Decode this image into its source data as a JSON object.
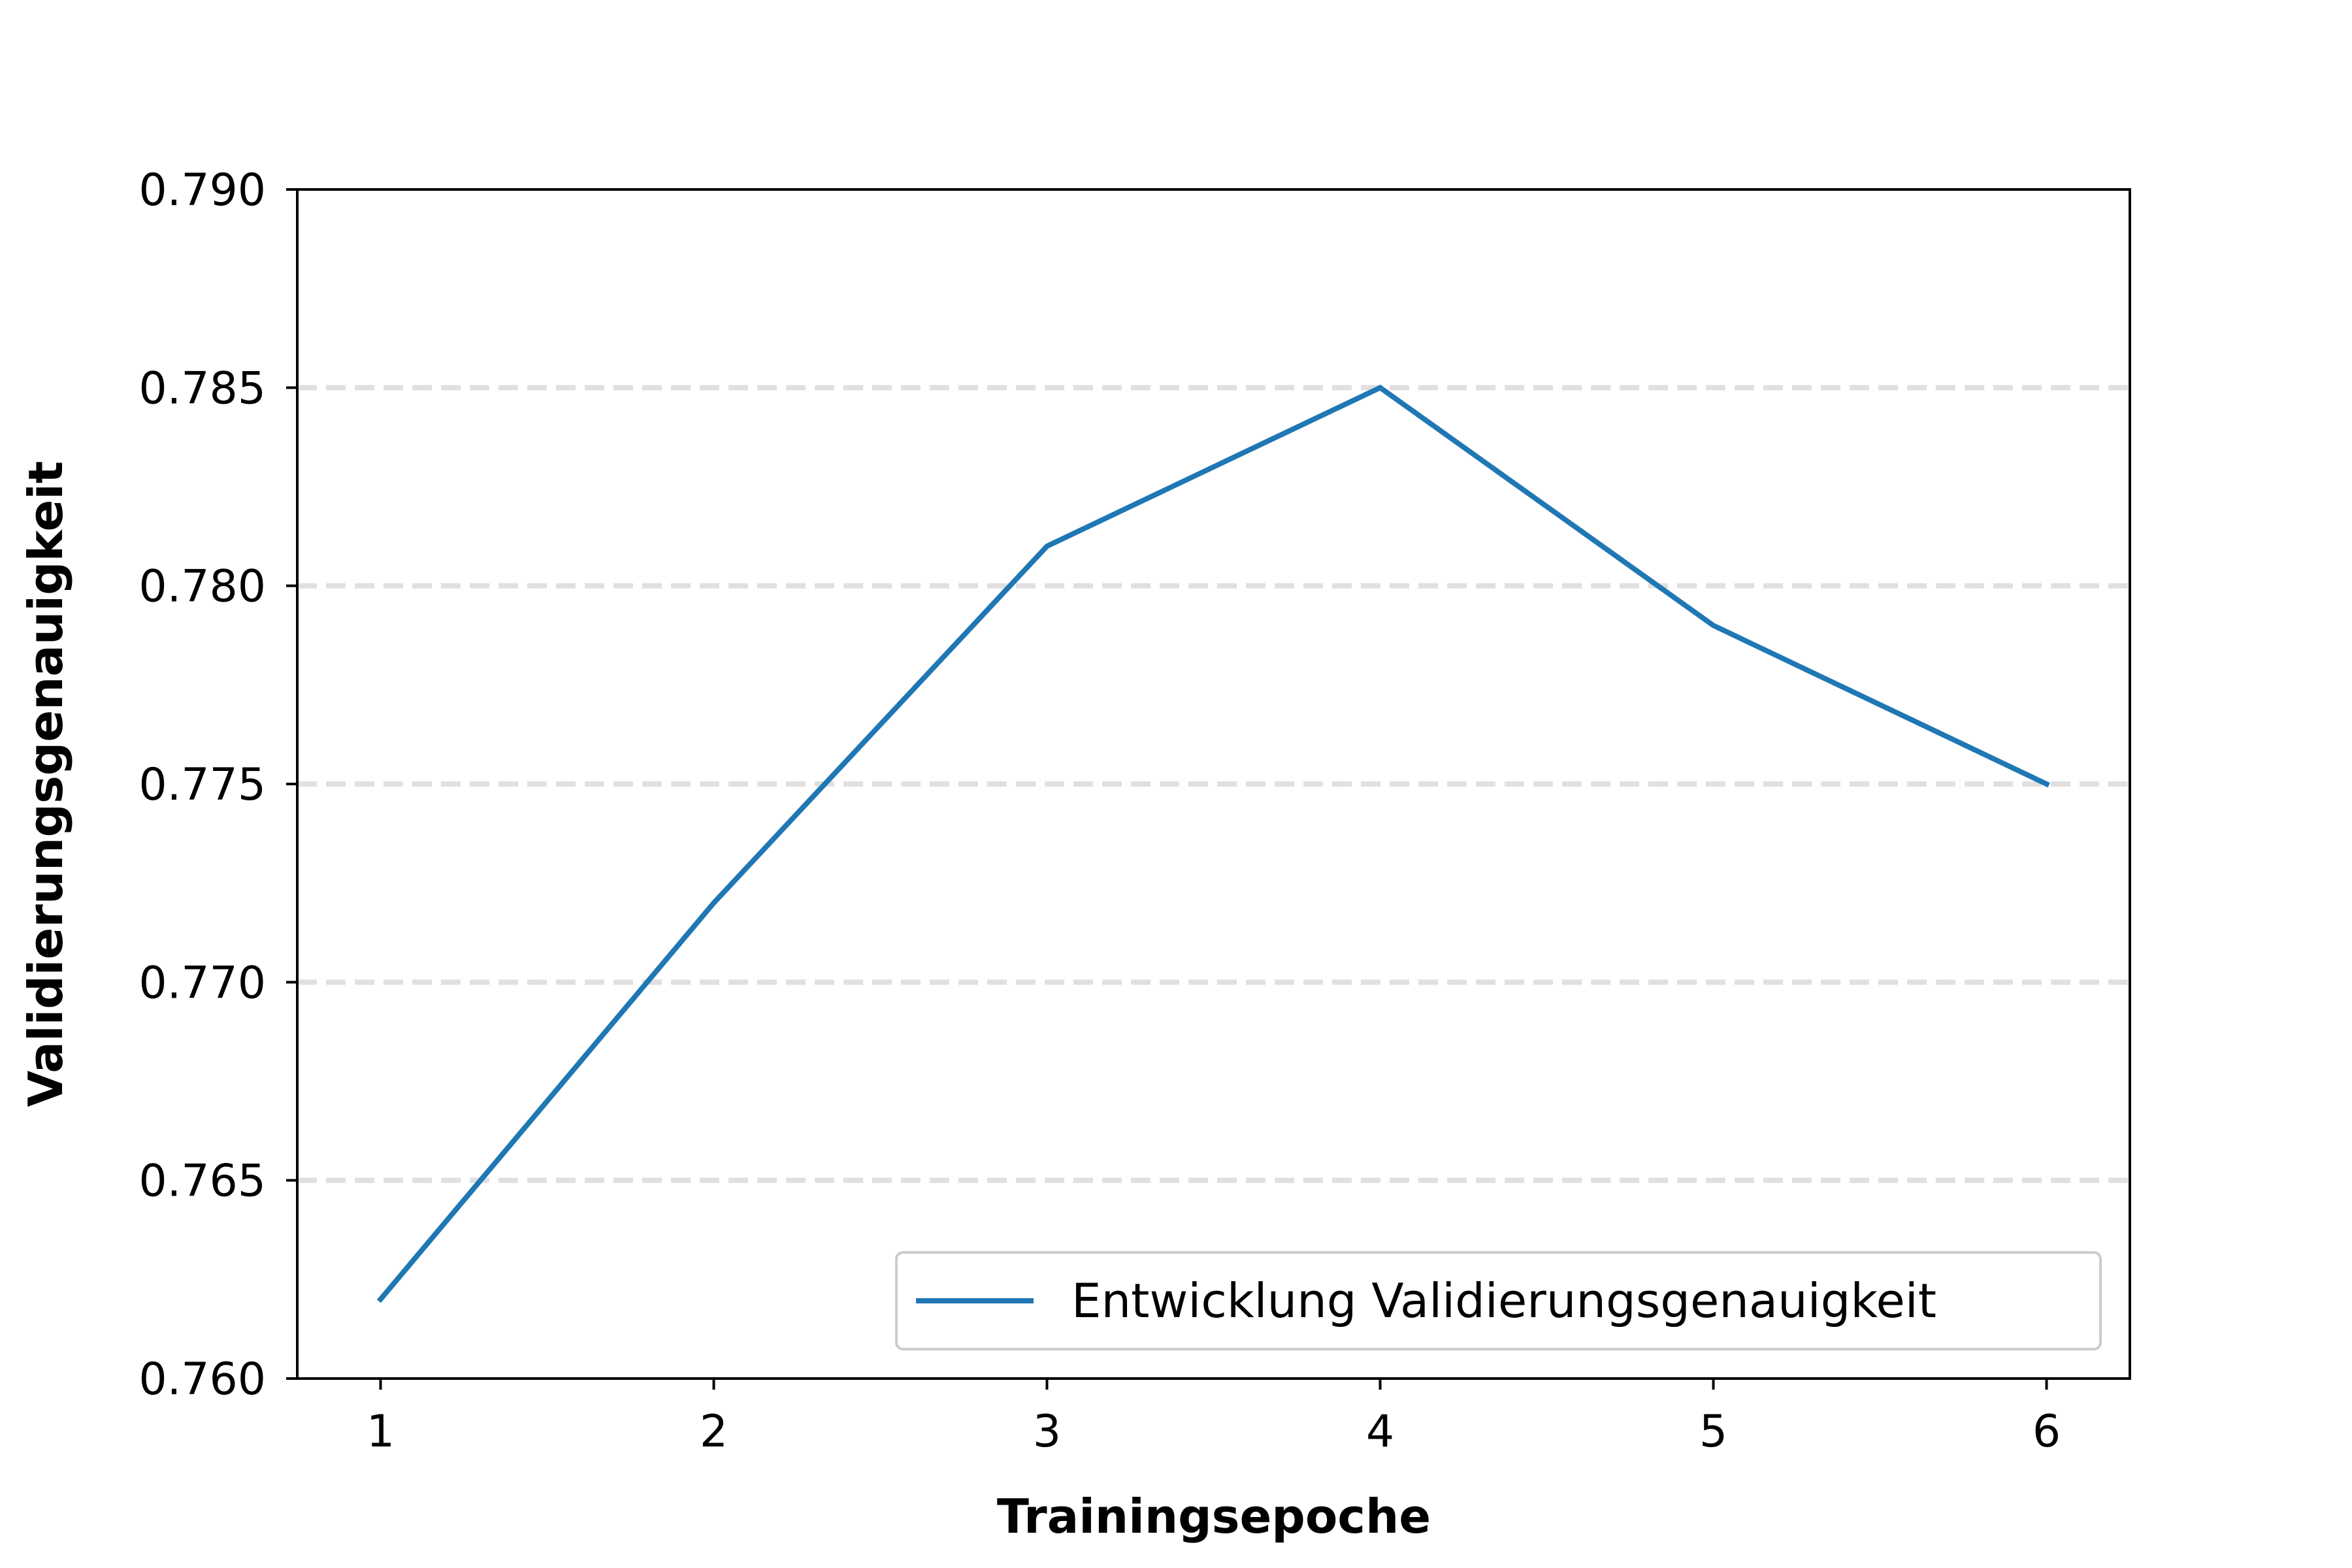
{
  "chart_data": {
    "type": "line",
    "title": "",
    "xlabel": "Trainingsepoche",
    "ylabel": "Validierungsgenauigkeit",
    "x": [
      1,
      2,
      3,
      4,
      5,
      6
    ],
    "x_tick_labels": [
      "1",
      "2",
      "3",
      "4",
      "5",
      "6"
    ],
    "xlim": [
      0.75,
      6.25
    ],
    "ylim": [
      0.76,
      0.79
    ],
    "y_ticks": [
      0.76,
      0.765,
      0.77,
      0.775,
      0.78,
      0.785,
      0.79
    ],
    "y_tick_labels": [
      "0.760",
      "0.765",
      "0.770",
      "0.775",
      "0.780",
      "0.785",
      "0.790"
    ],
    "grid": "y-dashed",
    "legend_position": "lower-right",
    "series": [
      {
        "name": "Entwicklung Validierungsgenauigkeit",
        "color": "#1f77b4",
        "values": [
          0.762,
          0.772,
          0.781,
          0.785,
          0.779,
          0.775
        ]
      }
    ]
  },
  "colors": {
    "grid": "#e0e0e0",
    "axes": "#000000",
    "legend_border": "#cccccc"
  }
}
